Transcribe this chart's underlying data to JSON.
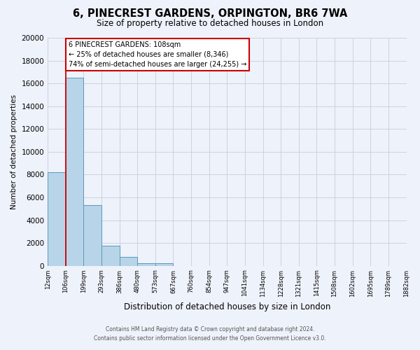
{
  "title": "6, PINECREST GARDENS, ORPINGTON, BR6 7WA",
  "subtitle": "Size of property relative to detached houses in London",
  "xlabel": "Distribution of detached houses by size in London",
  "ylabel": "Number of detached properties",
  "bin_labels": [
    "12sqm",
    "106sqm",
    "199sqm",
    "293sqm",
    "386sqm",
    "480sqm",
    "573sqm",
    "667sqm",
    "760sqm",
    "854sqm",
    "947sqm",
    "1041sqm",
    "1134sqm",
    "1228sqm",
    "1321sqm",
    "1415sqm",
    "1508sqm",
    "1602sqm",
    "1695sqm",
    "1789sqm",
    "1882sqm"
  ],
  "bar_heights": [
    8200,
    16500,
    5300,
    1750,
    750,
    250,
    200,
    0,
    0,
    0,
    0,
    0,
    0,
    0,
    0,
    0,
    0,
    0,
    0,
    0
  ],
  "bar_color": "#b8d4e8",
  "bar_edge_color": "#5a9abf",
  "background_color": "#eef2fa",
  "grid_color": "#c5cfe0",
  "ylim": [
    0,
    20000
  ],
  "yticks": [
    0,
    2000,
    4000,
    6000,
    8000,
    10000,
    12000,
    14000,
    16000,
    18000,
    20000
  ],
  "vline_color": "#cc0000",
  "annotation_title": "6 PINECREST GARDENS: 108sqm",
  "annotation_line1": "← 25% of detached houses are smaller (8,346)",
  "annotation_line2": "74% of semi-detached houses are larger (24,255) →",
  "annotation_box_color": "#ffffff",
  "annotation_box_edge": "#cc0000",
  "footer1": "Contains HM Land Registry data © Crown copyright and database right 2024.",
  "footer2": "Contains public sector information licensed under the Open Government Licence v3.0."
}
